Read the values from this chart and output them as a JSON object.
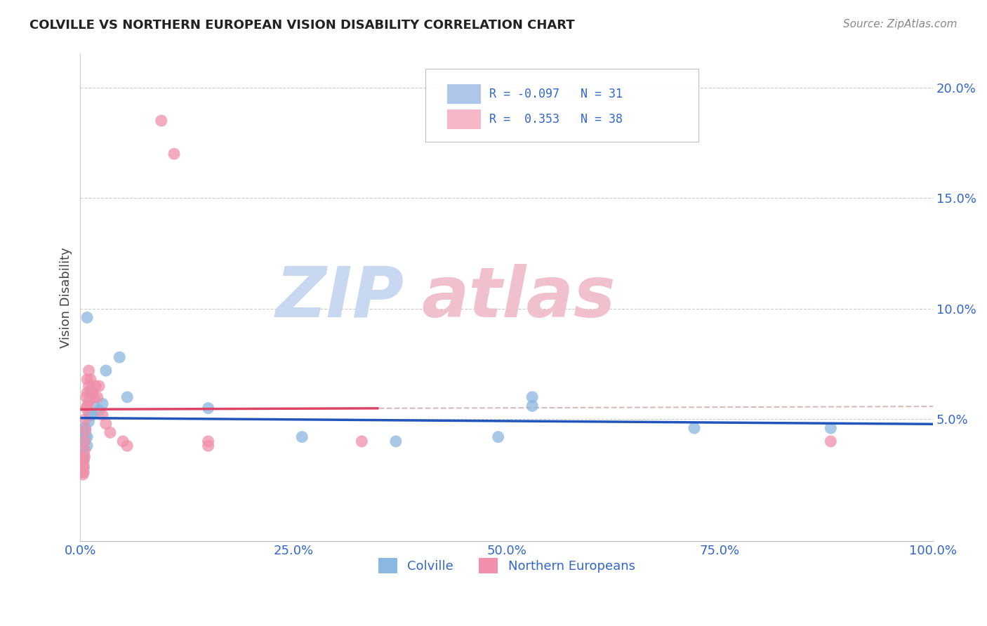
{
  "title": "COLVILLE VS NORTHERN EUROPEAN VISION DISABILITY CORRELATION CHART",
  "source": "Source: ZipAtlas.com",
  "ylabel": "Vision Disability",
  "xlim": [
    0,
    1.0
  ],
  "ylim": [
    -0.005,
    0.215
  ],
  "xtick_vals": [
    0.0,
    0.25,
    0.5,
    0.75,
    1.0
  ],
  "xtick_labels": [
    "0.0%",
    "25.0%",
    "50.0%",
    "75.0%",
    "100.0%"
  ],
  "ytick_vals": [
    0.05,
    0.1,
    0.15,
    0.2
  ],
  "ytick_labels": [
    "5.0%",
    "10.0%",
    "15.0%",
    "20.0%"
  ],
  "colville_color": "#8ab8e0",
  "northern_color": "#f090aa",
  "colville_line_color": "#2255bb",
  "northern_line_color": "#dd4466",
  "legend_box_color": "#aec6e8",
  "legend_pink_color": "#f4b8c8",
  "text_blue": "#3366cc",
  "watermark_zip_color": "#c8d8f0",
  "watermark_atlas_color": "#f0c0cc",
  "colville_points": [
    [
      0.004,
      0.046
    ],
    [
      0.004,
      0.043
    ],
    [
      0.004,
      0.04
    ],
    [
      0.004,
      0.037
    ],
    [
      0.004,
      0.034
    ],
    [
      0.004,
      0.031
    ],
    [
      0.004,
      0.028
    ],
    [
      0.006,
      0.046
    ],
    [
      0.006,
      0.042
    ],
    [
      0.008,
      0.096
    ],
    [
      0.008,
      0.042
    ],
    [
      0.008,
      0.038
    ],
    [
      0.01,
      0.053
    ],
    [
      0.01,
      0.049
    ],
    [
      0.012,
      0.063
    ],
    [
      0.012,
      0.052
    ],
    [
      0.014,
      0.052
    ],
    [
      0.016,
      0.056
    ],
    [
      0.022,
      0.054
    ],
    [
      0.026,
      0.057
    ],
    [
      0.03,
      0.072
    ],
    [
      0.046,
      0.078
    ],
    [
      0.055,
      0.06
    ],
    [
      0.15,
      0.055
    ],
    [
      0.26,
      0.042
    ],
    [
      0.37,
      0.04
    ],
    [
      0.49,
      0.042
    ],
    [
      0.53,
      0.06
    ],
    [
      0.53,
      0.056
    ],
    [
      0.72,
      0.046
    ],
    [
      0.88,
      0.046
    ]
  ],
  "northern_points": [
    [
      0.002,
      0.03
    ],
    [
      0.002,
      0.026
    ],
    [
      0.003,
      0.028
    ],
    [
      0.003,
      0.025
    ],
    [
      0.004,
      0.032
    ],
    [
      0.004,
      0.029
    ],
    [
      0.004,
      0.026
    ],
    [
      0.005,
      0.04
    ],
    [
      0.005,
      0.036
    ],
    [
      0.005,
      0.033
    ],
    [
      0.006,
      0.05
    ],
    [
      0.006,
      0.045
    ],
    [
      0.007,
      0.06
    ],
    [
      0.007,
      0.055
    ],
    [
      0.008,
      0.068
    ],
    [
      0.008,
      0.062
    ],
    [
      0.008,
      0.056
    ],
    [
      0.01,
      0.072
    ],
    [
      0.01,
      0.065
    ],
    [
      0.01,
      0.058
    ],
    [
      0.012,
      0.068
    ],
    [
      0.012,
      0.062
    ],
    [
      0.014,
      0.062
    ],
    [
      0.016,
      0.06
    ],
    [
      0.018,
      0.065
    ],
    [
      0.02,
      0.06
    ],
    [
      0.022,
      0.065
    ],
    [
      0.026,
      0.052
    ],
    [
      0.03,
      0.048
    ],
    [
      0.035,
      0.044
    ],
    [
      0.05,
      0.04
    ],
    [
      0.055,
      0.038
    ],
    [
      0.15,
      0.04
    ],
    [
      0.15,
      0.038
    ],
    [
      0.095,
      0.185
    ],
    [
      0.11,
      0.17
    ],
    [
      0.33,
      0.04
    ],
    [
      0.88,
      0.04
    ]
  ]
}
